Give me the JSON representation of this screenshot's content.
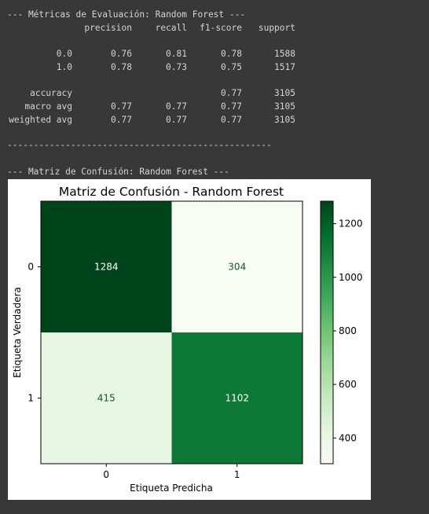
{
  "output": {
    "header": "--- Métricas de Evaluación: Random Forest ---",
    "columns": [
      "precision",
      "recall",
      "f1-score",
      "support"
    ],
    "rows": [
      {
        "label": "0.0",
        "precision": "0.76",
        "recall": "0.81",
        "f1": "0.78",
        "support": "1588"
      },
      {
        "label": "1.0",
        "precision": "0.78",
        "recall": "0.73",
        "f1": "0.75",
        "support": "1517"
      },
      {
        "label": "accuracy",
        "precision": "",
        "recall": "",
        "f1": "0.77",
        "support": "3105"
      },
      {
        "label": "macro avg",
        "precision": "0.77",
        "recall": "0.77",
        "f1": "0.77",
        "support": "3105"
      },
      {
        "label": "weighted avg",
        "precision": "0.77",
        "recall": "0.77",
        "f1": "0.77",
        "support": "3105"
      }
    ],
    "separator": "--------------------------------------------------",
    "cm_header": "--- Matriz de Confusión: Random Forest ---"
  },
  "chart_data": {
    "type": "heatmap",
    "title": "Matriz de Confusión - Random Forest",
    "xlabel": "Etiqueta Predicha",
    "ylabel": "Etiqueta Verdadera",
    "x_ticks": [
      "0",
      "1"
    ],
    "y_ticks": [
      "0",
      "1"
    ],
    "matrix": [
      [
        1284,
        304
      ],
      [
        415,
        1102
      ]
    ],
    "colormap": "Greens",
    "colorbar": {
      "range": [
        304,
        1284
      ],
      "ticks": [
        400,
        600,
        800,
        1000,
        1200
      ]
    },
    "colors": {
      "cell_00": "#00441b",
      "cell_01": "#f7fcf5",
      "cell_10": "#e7f5e3",
      "cell_11": "#0d7835",
      "text_dark": "#ffffff",
      "text_light": "#0f5a22"
    }
  }
}
